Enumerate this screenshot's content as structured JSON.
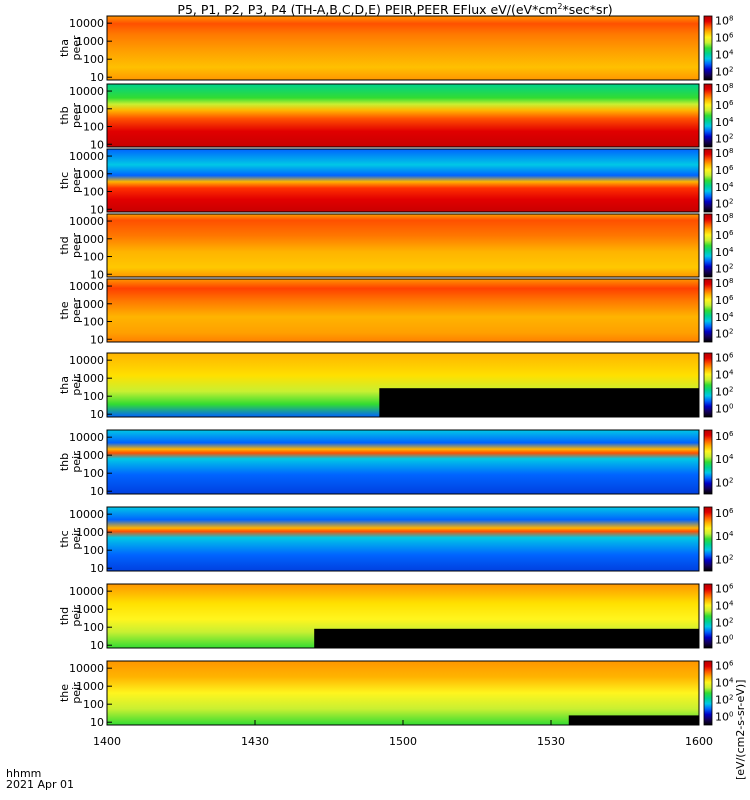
{
  "title": "P5, P1, P2, P3, P4 (TH-A,B,C,D,E) PEIR,PEER EFlux eV/(eV*cm",
  "title_sup": "2",
  "title_tail": "*sec*sr)",
  "footer": {
    "label1": "hhmm",
    "label2": "2021 Apr 01"
  },
  "colorbar_units": "[eV/(cm2-s-sr-eV)]",
  "colorbar_colors": [
    "#000000",
    "#14005a",
    "#0000c8",
    "#0064ff",
    "#00c8e6",
    "#00d28c",
    "#32dc32",
    "#c8f032",
    "#fff51e",
    "#ffb400",
    "#ff5a00",
    "#e10000",
    "#b40000"
  ],
  "chart_data": {
    "type": "heatmap",
    "x_ticks": [
      "1400",
      "1430",
      "1500",
      "1530",
      "1600"
    ],
    "x_range_hhmm": [
      "14:00",
      "16:00"
    ],
    "y_ticks": [
      "10",
      "100",
      "1000",
      "10000"
    ],
    "y_scale": "log",
    "y_range_eV": [
      7,
      25000
    ],
    "panels": [
      {
        "probe": "tha",
        "species": "peer",
        "label1": "tha",
        "label2": "peer",
        "cb_ticks": [
          "10^2",
          "10^4",
          "10^6",
          "10^8"
        ],
        "sup_exp": [
          2,
          4,
          6,
          8
        ]
      },
      {
        "probe": "thb",
        "species": "peer",
        "label1": "thb",
        "label2": "peer",
        "cb_ticks": [
          "10^2",
          "10^4",
          "10^6",
          "10^8"
        ],
        "sup_exp": [
          2,
          4,
          6,
          8
        ]
      },
      {
        "probe": "thc",
        "species": "peer",
        "label1": "thc",
        "label2": "peer",
        "cb_ticks": [
          "10^2",
          "10^4",
          "10^6",
          "10^8"
        ],
        "sup_exp": [
          2,
          4,
          6,
          8
        ]
      },
      {
        "probe": "thd",
        "species": "peer",
        "label1": "thd",
        "label2": "peer",
        "cb_ticks": [
          "10^2",
          "10^4",
          "10^6",
          "10^8"
        ],
        "sup_exp": [
          2,
          4,
          6,
          8
        ]
      },
      {
        "probe": "the",
        "species": "peer",
        "label1": "the",
        "label2": "peer",
        "cb_ticks": [
          "10^2",
          "10^4",
          "10^6",
          "10^8"
        ],
        "sup_exp": [
          2,
          4,
          6,
          8
        ]
      },
      {
        "probe": "tha",
        "species": "peir",
        "label1": "tha",
        "label2": "peir",
        "cb_ticks": [
          "10^0",
          "10^2",
          "10^4",
          "10^6"
        ],
        "sup_exp": [
          0,
          2,
          4,
          6
        ]
      },
      {
        "probe": "thb",
        "species": "peir",
        "label1": "thb",
        "label2": "peir",
        "cb_ticks": [
          "10^2",
          "10^4",
          "10^6"
        ],
        "sup_exp": [
          2,
          4,
          6
        ]
      },
      {
        "probe": "thc",
        "species": "peir",
        "label1": "thc",
        "label2": "peir",
        "cb_ticks": [
          "10^2",
          "10^4",
          "10^6"
        ],
        "sup_exp": [
          2,
          4,
          6
        ]
      },
      {
        "probe": "thd",
        "species": "peir",
        "label1": "thd",
        "label2": "peir",
        "cb_ticks": [
          "10^0",
          "10^2",
          "10^4",
          "10^6"
        ],
        "sup_exp": [
          0,
          2,
          4,
          6
        ]
      },
      {
        "probe": "the",
        "species": "peir",
        "label1": "the",
        "label2": "peir",
        "cb_ticks": [
          "10^0",
          "10^2",
          "10^4",
          "10^6"
        ],
        "sup_exp": [
          0,
          2,
          4,
          6
        ]
      }
    ]
  }
}
